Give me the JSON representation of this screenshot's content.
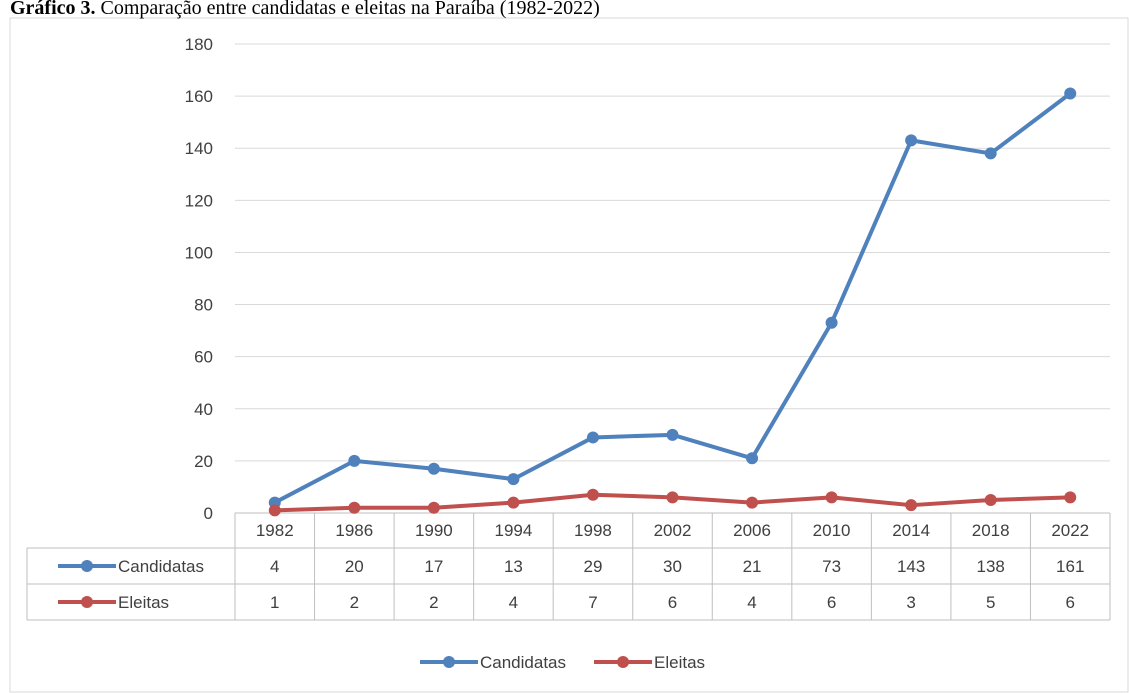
{
  "chart_data": {
    "type": "line",
    "title_label": "Gráfico 3.",
    "title": "Comparação entre candidatas e eleitas na Paraíba (1982-2022)",
    "categories": [
      "1982",
      "1986",
      "1990",
      "1994",
      "1998",
      "2002",
      "2006",
      "2010",
      "2014",
      "2018",
      "2022"
    ],
    "series": [
      {
        "name": "Candidatas",
        "color": "#4f81bd",
        "values": [
          4,
          20,
          17,
          13,
          29,
          30,
          21,
          73,
          143,
          138,
          161
        ]
      },
      {
        "name": "Eleitas",
        "color": "#c0504d",
        "values": [
          1,
          2,
          2,
          4,
          7,
          6,
          4,
          6,
          3,
          5,
          6
        ]
      }
    ],
    "ylim": [
      0,
      180
    ],
    "yticks": [
      0,
      20,
      40,
      60,
      80,
      100,
      120,
      140,
      160,
      180
    ],
    "grid": true,
    "legend": "bottom"
  }
}
